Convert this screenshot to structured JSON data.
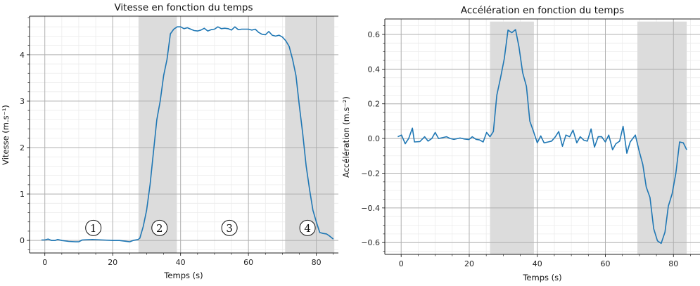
{
  "chart_data": [
    {
      "type": "line",
      "title": "Vitesse en fonction du temps",
      "xlabel": "Temps (s)",
      "ylabel": "Vitesse (m.s⁻¹)",
      "xlim": [
        -4.5,
        86.5
      ],
      "ylim": [
        -0.27,
        4.83
      ],
      "xticks": [
        0,
        20,
        40,
        60,
        80
      ],
      "xtick_labels": [
        "0",
        "20",
        "40",
        "60",
        "80"
      ],
      "yticks": [
        0,
        1,
        2,
        3,
        4
      ],
      "ytick_labels": [
        "0",
        "1",
        "2",
        "3",
        "4"
      ],
      "x_minor_step": 5,
      "y_minor_step": 0.2,
      "grid": true,
      "line_color": "#1f77b4",
      "shade_color": "#dcdcdc",
      "shaded_regions": [
        [
          27.6,
          38.9
        ],
        [
          70.8,
          85.3
        ]
      ],
      "annotations": [
        {
          "text": "1",
          "x": 14.3,
          "y": 0.27
        },
        {
          "text": "2",
          "x": 33.8,
          "y": 0.27
        },
        {
          "text": "3",
          "x": 54.4,
          "y": 0.27
        },
        {
          "text": "4",
          "x": 77.4,
          "y": 0.27
        }
      ],
      "x": [
        -1,
        0,
        1,
        2,
        3,
        3.8,
        5,
        7,
        9,
        10,
        11,
        14,
        17,
        20,
        22,
        25,
        26,
        27.5,
        28,
        29,
        30,
        31,
        32,
        33,
        34,
        35,
        36,
        37,
        38,
        39,
        40,
        41,
        42,
        43,
        44,
        45,
        46,
        47,
        48,
        49,
        50,
        51,
        52,
        53,
        54,
        55,
        56,
        57,
        58,
        59,
        60,
        61,
        62,
        63,
        64,
        65,
        66,
        67,
        68,
        69,
        70,
        71,
        72,
        73,
        74,
        75,
        76,
        77,
        78,
        79,
        80,
        81,
        82,
        83,
        84,
        85
      ],
      "y": [
        0.01,
        0.01,
        0.03,
        0.0,
        0.0,
        0.02,
        0.0,
        -0.02,
        -0.03,
        -0.03,
        0.01,
        0.02,
        0.01,
        0.0,
        0.0,
        -0.03,
        0.0,
        0.02,
        0.05,
        0.3,
        0.65,
        1.2,
        1.9,
        2.6,
        3.0,
        3.55,
        3.9,
        4.45,
        4.55,
        4.6,
        4.6,
        4.56,
        4.58,
        4.55,
        4.52,
        4.51,
        4.53,
        4.57,
        4.51,
        4.54,
        4.55,
        4.6,
        4.56,
        4.57,
        4.56,
        4.53,
        4.6,
        4.54,
        4.55,
        4.55,
        4.55,
        4.53,
        4.55,
        4.48,
        4.44,
        4.43,
        4.5,
        4.42,
        4.4,
        4.42,
        4.38,
        4.3,
        4.18,
        3.9,
        3.55,
        2.9,
        2.3,
        1.6,
        1.1,
        0.65,
        0.4,
        0.17,
        0.15,
        0.14,
        0.09,
        0.03
      ]
    },
    {
      "type": "line",
      "title": "Accélération en fonction du temps",
      "xlabel": "Temps (s)",
      "ylabel": "Accélération (m.s⁻²)",
      "xlim": [
        -4.8,
        87.8
      ],
      "ylim": [
        -0.668,
        0.689
      ],
      "xticks": [
        0,
        20,
        40,
        60,
        80
      ],
      "xtick_labels": [
        "0",
        "20",
        "40",
        "60",
        "80"
      ],
      "yticks": [
        -0.6,
        -0.4,
        -0.2,
        0.0,
        0.2,
        0.4,
        0.6
      ],
      "ytick_labels": [
        "−0.6",
        "−0.4",
        "−0.2",
        "0.0",
        "0.2",
        "0.4",
        "0.6"
      ],
      "x_minor_step": 5,
      "y_minor_step": 0.05,
      "grid": true,
      "line_color": "#1f77b4",
      "shade_color": "#dcdcdc",
      "shaded_regions": [
        [
          26.1,
          39.0
        ],
        [
          69.4,
          83.9
        ]
      ],
      "shade_top": 0.674,
      "x": [
        -1,
        0.1,
        1.2,
        2.2,
        3.3,
        3.9,
        5.5,
        6.9,
        7.9,
        9,
        10,
        11,
        13.3,
        14.4,
        15.5,
        17.3,
        18.6,
        19.9,
        20.9,
        22,
        23,
        24.1,
        25.1,
        26.1,
        27.1,
        28.1,
        29.2,
        30.3,
        31.4,
        32.5,
        33.6,
        34.6,
        35.7,
        36.8,
        37.8,
        38.9,
        40,
        41,
        42,
        43.2,
        44.2,
        45.3,
        46.3,
        47.4,
        48.4,
        49.5,
        50.5,
        51.6,
        52.6,
        53.7,
        54.7,
        55.8,
        56.8,
        57.9,
        58.9,
        60,
        61,
        62.1,
        63.1,
        64.2,
        65.2,
        66.3,
        67.3,
        68.8,
        69.9,
        71,
        72,
        73.1,
        74.2,
        75.3,
        76.4,
        77.5,
        78.5,
        79.6,
        80.7,
        81.8,
        82.9,
        83.9
      ],
      "y": [
        0.01,
        0.02,
        -0.03,
        0.0,
        0.06,
        -0.02,
        -0.018,
        0.01,
        -0.015,
        0.0,
        0.035,
        0.0,
        0.01,
        0.0,
        -0.005,
        0.003,
        -0.003,
        -0.006,
        0.01,
        -0.005,
        -0.008,
        -0.02,
        0.035,
        0.01,
        0.04,
        0.25,
        0.35,
        0.46,
        0.625,
        0.61,
        0.628,
        0.53,
        0.38,
        0.3,
        0.1,
        0.04,
        -0.025,
        0.015,
        -0.025,
        -0.02,
        -0.015,
        0.01,
        0.04,
        -0.045,
        0.02,
        0.01,
        0.048,
        -0.025,
        0.01,
        -0.01,
        -0.015,
        0.055,
        -0.05,
        0.01,
        0.01,
        -0.02,
        0.02,
        -0.065,
        -0.03,
        -0.015,
        0.07,
        -0.085,
        -0.02,
        0.02,
        -0.07,
        -0.15,
        -0.28,
        -0.34,
        -0.52,
        -0.59,
        -0.605,
        -0.54,
        -0.39,
        -0.32,
        -0.2,
        -0.02,
        -0.025,
        -0.065
      ]
    }
  ]
}
